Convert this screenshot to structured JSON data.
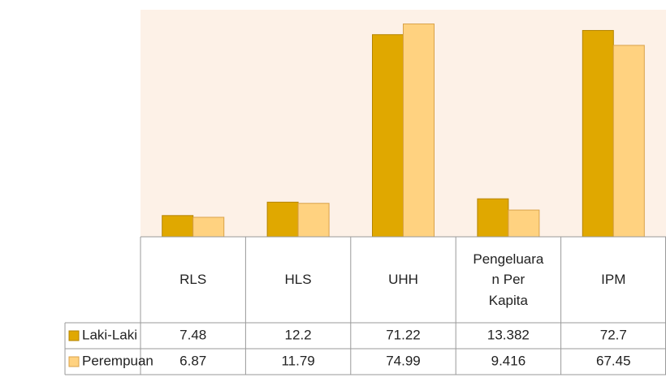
{
  "chart_data": {
    "type": "bar",
    "categories": [
      "RLS",
      "HLS",
      "UHH",
      "Pengeluaran Per Kapita",
      "IPM"
    ],
    "series": [
      {
        "name": "Laki-Laki",
        "color": "#e0a800",
        "values": [
          7.48,
          12.2,
          71.22,
          13.382,
          72.7
        ]
      },
      {
        "name": "Perempuan",
        "color": "#ffd280",
        "values": [
          6.87,
          11.79,
          74.99,
          9.416,
          67.45
        ]
      }
    ],
    "ylim": [
      0,
      80
    ]
  }
}
